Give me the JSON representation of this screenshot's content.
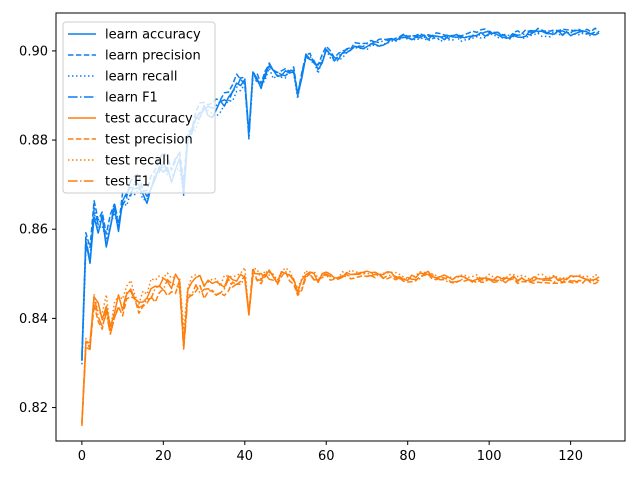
{
  "chart_data": {
    "type": "line",
    "title": "",
    "xlabel": "",
    "ylabel": "",
    "xlim": [
      -6.35,
      133.35
    ],
    "ylim": [
      0.8125,
      0.9085
    ],
    "xticks": [
      0,
      20,
      40,
      60,
      80,
      100,
      120
    ],
    "yticks": [
      0.82,
      0.84,
      0.86,
      0.88,
      0.9
    ],
    "ytick_labels": [
      "0.82",
      "0.84",
      "0.86",
      "0.88",
      "0.90"
    ],
    "grid": false,
    "legend_position": "top-left",
    "colors": {
      "learn": "#0a7ff0",
      "test": "#ff7f0e"
    },
    "anchors": {
      "learn": {
        "x": [
          0,
          1,
          2,
          3,
          4,
          5,
          6,
          7,
          8,
          9,
          10,
          12,
          14,
          16,
          18,
          20,
          22,
          24,
          25,
          26,
          28,
          30,
          32,
          34,
          36,
          38,
          40,
          41,
          42,
          44,
          46,
          48,
          50,
          52,
          53,
          55,
          58,
          60,
          62,
          65,
          68,
          70,
          75,
          80,
          85,
          90,
          95,
          100,
          105,
          110,
          115,
          120,
          127
        ],
        "y": [
          0.83,
          0.856,
          0.853,
          0.864,
          0.86,
          0.862,
          0.857,
          0.861,
          0.864,
          0.86,
          0.866,
          0.868,
          0.87,
          0.866,
          0.872,
          0.874,
          0.872,
          0.876,
          0.868,
          0.88,
          0.884,
          0.887,
          0.886,
          0.888,
          0.889,
          0.892,
          0.893,
          0.881,
          0.895,
          0.892,
          0.896,
          0.894,
          0.895,
          0.896,
          0.89,
          0.899,
          0.896,
          0.9,
          0.898,
          0.9,
          0.901,
          0.901,
          0.902,
          0.903,
          0.903,
          0.903,
          0.903,
          0.904,
          0.903,
          0.904,
          0.904,
          0.904,
          0.904
        ]
      },
      "test": {
        "x": [
          0,
          1,
          2,
          3,
          4,
          5,
          6,
          7,
          8,
          9,
          10,
          12,
          14,
          16,
          18,
          20,
          22,
          24,
          25,
          26,
          28,
          30,
          32,
          34,
          36,
          38,
          40,
          41,
          42,
          44,
          46,
          48,
          50,
          52,
          53,
          55,
          58,
          60,
          62,
          65,
          68,
          70,
          75,
          80,
          85,
          90,
          95,
          100,
          105,
          110,
          115,
          120,
          127
        ],
        "y": [
          0.817,
          0.836,
          0.834,
          0.846,
          0.842,
          0.84,
          0.843,
          0.838,
          0.841,
          0.845,
          0.843,
          0.848,
          0.843,
          0.846,
          0.847,
          0.849,
          0.848,
          0.849,
          0.835,
          0.847,
          0.849,
          0.847,
          0.848,
          0.847,
          0.849,
          0.849,
          0.85,
          0.841,
          0.851,
          0.849,
          0.85,
          0.849,
          0.851,
          0.849,
          0.846,
          0.85,
          0.849,
          0.85,
          0.849,
          0.85,
          0.85,
          0.85,
          0.85,
          0.849,
          0.85,
          0.849,
          0.849,
          0.849,
          0.849,
          0.849,
          0.849,
          0.849,
          0.849
        ]
      }
    },
    "series": [
      {
        "name": "learn accuracy",
        "group": "learn",
        "dash": "solid",
        "offset": 0.0,
        "seed": 11
      },
      {
        "name": "learn precision",
        "group": "learn",
        "dash": "dashed",
        "offset": 0.0006,
        "seed": 23
      },
      {
        "name": "learn recall",
        "group": "learn",
        "dash": "dotted",
        "offset": -0.0003,
        "seed": 37
      },
      {
        "name": "learn F1",
        "group": "learn",
        "dash": "dashdot",
        "offset": 0.0002,
        "seed": 41
      },
      {
        "name": "test accuracy",
        "group": "test",
        "dash": "solid",
        "offset": 0.0,
        "seed": 53
      },
      {
        "name": "test precision",
        "group": "test",
        "dash": "dashed",
        "offset": -0.0006,
        "seed": 67
      },
      {
        "name": "test recall",
        "group": "test",
        "dash": "dotted",
        "offset": 0.0003,
        "seed": 71
      },
      {
        "name": "test F1",
        "group": "test",
        "dash": "dashdot",
        "offset": -0.0004,
        "seed": 83
      }
    ]
  }
}
